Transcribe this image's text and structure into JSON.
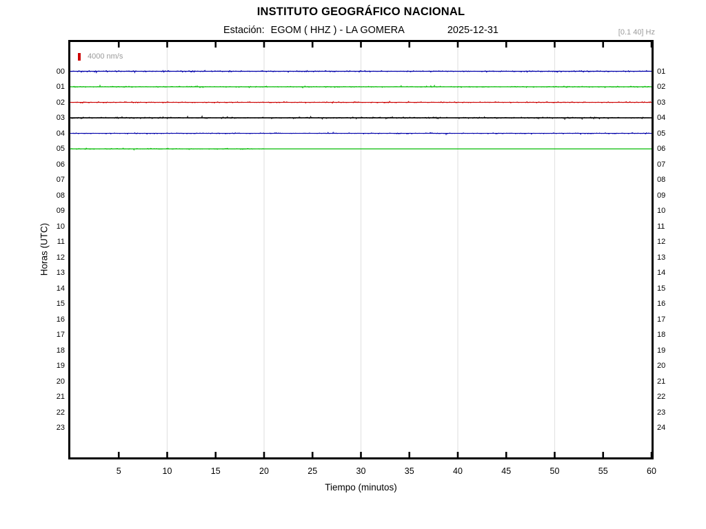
{
  "header": {
    "title": "INSTITUTO GEOGRÁFICO NACIONAL",
    "station_label": "Estación:",
    "station_value": "EGOM ( HHZ ) - LA GOMERA",
    "date": "2025-12-31",
    "filter": "[0.1 40] Hz"
  },
  "chart_data": {
    "type": "line",
    "title": "INSTITUTO GEOGRÁFICO NACIONAL",
    "subtitle": "Estación: EGOM ( HHZ ) - LA GOMERA 2025-12-31",
    "xlabel": "Tiempo (minutos)",
    "ylabel": "Horas (UTC)",
    "xlim": [
      0,
      60
    ],
    "xticks_minutes": [
      5,
      10,
      15,
      20,
      25,
      30,
      35,
      40,
      45,
      50,
      55,
      60
    ],
    "grid_minutes": [
      10,
      20,
      30,
      40,
      50
    ],
    "grid_on": true,
    "left_hour_labels": [
      "00",
      "01",
      "02",
      "03",
      "04",
      "05",
      "06",
      "07",
      "08",
      "09",
      "10",
      "11",
      "12",
      "13",
      "14",
      "15",
      "16",
      "17",
      "18",
      "19",
      "20",
      "21",
      "22",
      "23"
    ],
    "right_hour_labels": [
      "01",
      "02",
      "03",
      "04",
      "05",
      "06",
      "07",
      "08",
      "09",
      "10",
      "11",
      "12",
      "13",
      "14",
      "15",
      "16",
      "17",
      "18",
      "19",
      "20",
      "21",
      "22",
      "23",
      "24"
    ],
    "scale_legend": {
      "value": "4000 nm/s",
      "color": "#cc0000"
    },
    "filter_band": "[0.1 40] Hz",
    "colors": {
      "blue": "#0000aa",
      "green": "#00bb00",
      "red": "#cc0000",
      "black": "#000000",
      "grid": "#e3e3e3",
      "muted_text": "#9a9a9a"
    },
    "traces": [
      {
        "hour_utc": "00",
        "row": 0,
        "color": "#0000aa",
        "base_width": 1.2,
        "segments": [
          {
            "type": "noise",
            "start_min": 0,
            "end_min": 60,
            "amp": 1.5
          }
        ]
      },
      {
        "hour_utc": "01",
        "row": 1,
        "color": "#00bb00",
        "base_width": 1.2,
        "segments": [
          {
            "type": "noise",
            "start_min": 0,
            "end_min": 60,
            "amp": 1.3
          }
        ]
      },
      {
        "hour_utc": "02",
        "row": 2,
        "color": "#cc0000",
        "base_width": 1.1,
        "segments": [
          {
            "type": "noise",
            "start_min": 0,
            "end_min": 60,
            "amp": 1.3
          }
        ]
      },
      {
        "hour_utc": "03",
        "row": 3,
        "color": "#000000",
        "base_width": 1.6,
        "segments": [
          {
            "type": "noise",
            "start_min": 0,
            "end_min": 60,
            "amp": 1.7
          }
        ]
      },
      {
        "hour_utc": "04",
        "row": 4,
        "color": "#0000aa",
        "base_width": 1.1,
        "segments": [
          {
            "type": "noise",
            "start_min": 0,
            "end_min": 60,
            "amp": 1.2
          }
        ]
      },
      {
        "hour_utc": "05",
        "row": 5,
        "color": "#00bb00",
        "base_width": 1.2,
        "segments": [
          {
            "type": "noise",
            "start_min": 0,
            "end_min": 20,
            "amp": 1.3
          },
          {
            "type": "flat",
            "start_min": 20,
            "end_min": 60
          }
        ]
      }
    ]
  }
}
